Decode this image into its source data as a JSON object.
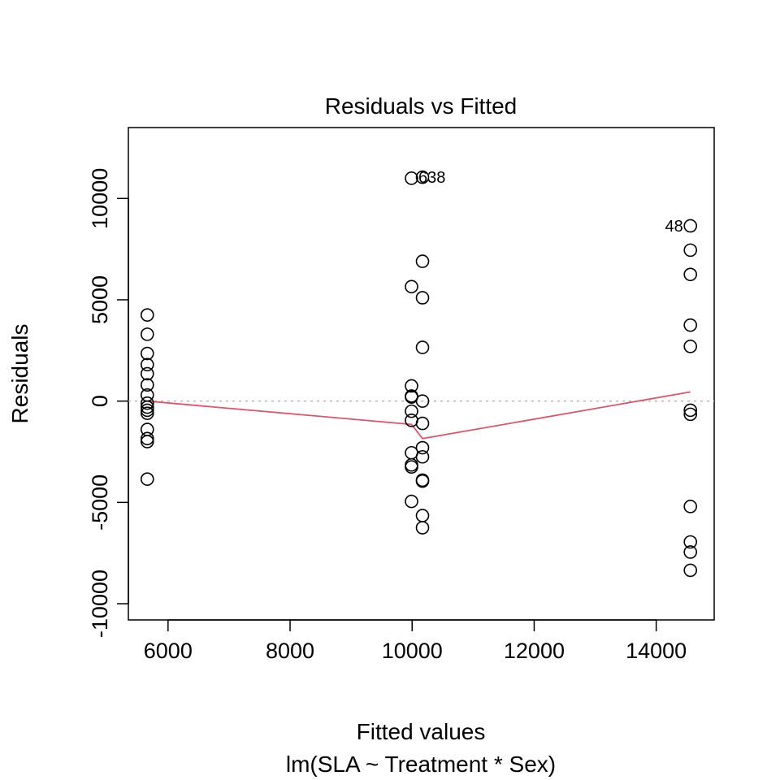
{
  "chart_data": {
    "type": "scatter",
    "title": "Residuals vs Fitted",
    "xlabel": "Fitted values",
    "subtitle": "lm(SLA ~ Treatment * Sex)",
    "ylabel": "Residuals",
    "xlim": [
      5350,
      14950
    ],
    "ylim": [
      -10800,
      13500
    ],
    "xticks": [
      6000,
      8000,
      10000,
      12000,
      14000
    ],
    "xtick_labels": [
      "6000",
      "8000",
      "10000",
      "12000",
      "14000"
    ],
    "yticks": [
      -10000,
      -5000,
      0,
      5000,
      10000
    ],
    "ytick_labels": [
      "-10000",
      "-5000",
      "0",
      "5000",
      "10000"
    ],
    "reference_line": {
      "y": 0,
      "style": "dotted",
      "color": "#b3b3b3"
    },
    "point_color": "#000000",
    "smooth_color": "#df536b",
    "points": [
      {
        "x": 5660,
        "y": 4250
      },
      {
        "x": 5660,
        "y": 3300
      },
      {
        "x": 5660,
        "y": 2350
      },
      {
        "x": 5660,
        "y": 1800
      },
      {
        "x": 5660,
        "y": 1350
      },
      {
        "x": 5660,
        "y": 800
      },
      {
        "x": 5660,
        "y": 300
      },
      {
        "x": 5660,
        "y": -100
      },
      {
        "x": 5660,
        "y": -300
      },
      {
        "x": 5660,
        "y": -450
      },
      {
        "x": 5660,
        "y": -600
      },
      {
        "x": 5660,
        "y": -1400
      },
      {
        "x": 5660,
        "y": -1850
      },
      {
        "x": 5660,
        "y": -2000
      },
      {
        "x": 5660,
        "y": -3850
      },
      {
        "x": 9990,
        "y": 11000
      },
      {
        "x": 9990,
        "y": 5650
      },
      {
        "x": 9990,
        "y": 750
      },
      {
        "x": 9990,
        "y": 250
      },
      {
        "x": 9990,
        "y": 200
      },
      {
        "x": 9990,
        "y": -500
      },
      {
        "x": 9990,
        "y": -950
      },
      {
        "x": 9990,
        "y": -2550
      },
      {
        "x": 9990,
        "y": -3150
      },
      {
        "x": 9990,
        "y": -3250
      },
      {
        "x": 9990,
        "y": -4950
      },
      {
        "x": 10170,
        "y": 11050
      },
      {
        "x": 10170,
        "y": 6900
      },
      {
        "x": 10170,
        "y": 5100
      },
      {
        "x": 10170,
        "y": 2650
      },
      {
        "x": 10170,
        "y": 0
      },
      {
        "x": 10170,
        "y": -1100
      },
      {
        "x": 10170,
        "y": -2300
      },
      {
        "x": 10170,
        "y": -2750
      },
      {
        "x": 10170,
        "y": -3900
      },
      {
        "x": 10170,
        "y": -3950
      },
      {
        "x": 10170,
        "y": -5650
      },
      {
        "x": 10170,
        "y": -6250
      },
      {
        "x": 14560,
        "y": 8650
      },
      {
        "x": 14560,
        "y": 7450
      },
      {
        "x": 14560,
        "y": 6250
      },
      {
        "x": 14560,
        "y": 3750
      },
      {
        "x": 14560,
        "y": 2700
      },
      {
        "x": 14560,
        "y": -450
      },
      {
        "x": 14560,
        "y": -650
      },
      {
        "x": 14560,
        "y": -5200
      },
      {
        "x": 14560,
        "y": -6950
      },
      {
        "x": 14560,
        "y": -7450
      },
      {
        "x": 14560,
        "y": -8350
      }
    ],
    "smooth_line": [
      {
        "x": 5660,
        "y": 0
      },
      {
        "x": 9990,
        "y": -1150
      },
      {
        "x": 10170,
        "y": -1850
      },
      {
        "x": 14560,
        "y": 450
      }
    ],
    "annotations": [
      {
        "text": "638",
        "x": 10170,
        "y": 11050,
        "side": "right"
      },
      {
        "text": "48",
        "x": 14560,
        "y": 8650,
        "side": "left"
      }
    ]
  }
}
